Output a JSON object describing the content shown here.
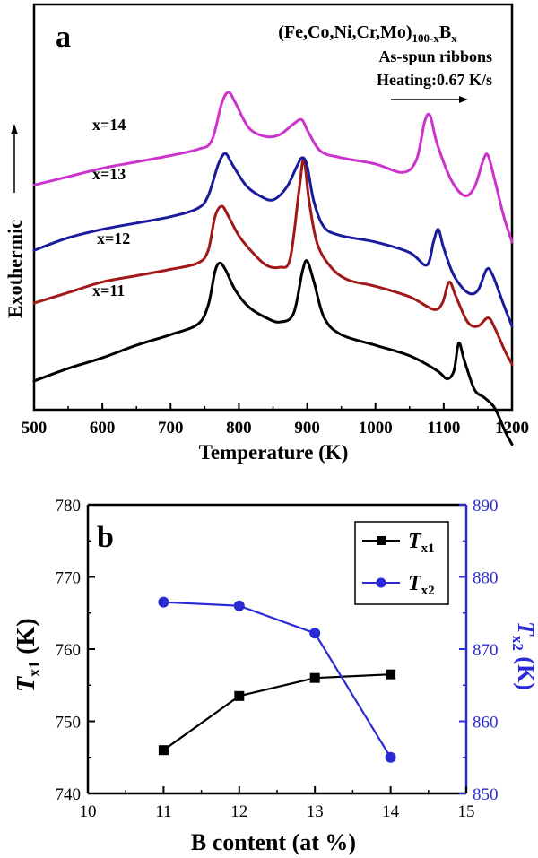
{
  "chart_data": [
    {
      "type": "line",
      "panel_label": "a",
      "xlabel": "Temperature (K)",
      "ylabel": "Exothermic",
      "xlim": [
        500,
        1200
      ],
      "xticks": [
        500,
        600,
        700,
        800,
        900,
        1000,
        1100,
        1200
      ],
      "y_axis_numeric": false,
      "annotation": {
        "composition_prefix": "(Fe,Co,Ni,Cr,Mo)",
        "composition_sub1": "100-x",
        "composition_mid": "B",
        "composition_sub2": "x",
        "line2": "As-spun ribbons",
        "line3": "Heating:0.67 K/s"
      },
      "series": [
        {
          "label": "x=11",
          "color": "#000000",
          "points": [
            [
              500,
              0.0
            ],
            [
              550,
              0.06
            ],
            [
              600,
              0.11
            ],
            [
              650,
              0.17
            ],
            [
              700,
              0.22
            ],
            [
              740,
              0.27
            ],
            [
              755,
              0.36
            ],
            [
              765,
              0.52
            ],
            [
              772,
              0.56
            ],
            [
              780,
              0.53
            ],
            [
              795,
              0.43
            ],
            [
              815,
              0.35
            ],
            [
              840,
              0.3
            ],
            [
              860,
              0.28
            ],
            [
              880,
              0.32
            ],
            [
              893,
              0.52
            ],
            [
              900,
              0.57
            ],
            [
              910,
              0.47
            ],
            [
              925,
              0.3
            ],
            [
              950,
              0.22
            ],
            [
              1000,
              0.17
            ],
            [
              1050,
              0.12
            ],
            [
              1090,
              0.05
            ],
            [
              1105,
              0.01
            ],
            [
              1115,
              0.05
            ],
            [
              1122,
              0.18
            ],
            [
              1130,
              0.1
            ],
            [
              1145,
              -0.04
            ],
            [
              1160,
              -0.08
            ],
            [
              1175,
              -0.13
            ],
            [
              1190,
              -0.24
            ],
            [
              1200,
              -0.3
            ]
          ]
        },
        {
          "label": "x=12",
          "color": "#a01818",
          "points": [
            [
              500,
              0.37
            ],
            [
              550,
              0.42
            ],
            [
              600,
              0.47
            ],
            [
              650,
              0.5
            ],
            [
              700,
              0.53
            ],
            [
              740,
              0.56
            ],
            [
              755,
              0.62
            ],
            [
              765,
              0.78
            ],
            [
              775,
              0.83
            ],
            [
              785,
              0.78
            ],
            [
              800,
              0.69
            ],
            [
              820,
              0.61
            ],
            [
              840,
              0.55
            ],
            [
              860,
              0.54
            ],
            [
              875,
              0.58
            ],
            [
              888,
              0.9
            ],
            [
              895,
              1.05
            ],
            [
              903,
              0.85
            ],
            [
              915,
              0.65
            ],
            [
              935,
              0.54
            ],
            [
              960,
              0.48
            ],
            [
              1000,
              0.45
            ],
            [
              1050,
              0.4
            ],
            [
              1085,
              0.34
            ],
            [
              1098,
              0.37
            ],
            [
              1108,
              0.47
            ],
            [
              1118,
              0.4
            ],
            [
              1135,
              0.28
            ],
            [
              1150,
              0.26
            ],
            [
              1165,
              0.3
            ],
            [
              1175,
              0.25
            ],
            [
              1190,
              0.14
            ],
            [
              1200,
              0.08
            ]
          ]
        },
        {
          "label": "x=13",
          "color": "#1a1a9c",
          "points": [
            [
              500,
              0.62
            ],
            [
              550,
              0.68
            ],
            [
              600,
              0.72
            ],
            [
              650,
              0.75
            ],
            [
              700,
              0.78
            ],
            [
              740,
              0.82
            ],
            [
              755,
              0.88
            ],
            [
              770,
              1.03
            ],
            [
              780,
              1.08
            ],
            [
              790,
              1.03
            ],
            [
              810,
              0.93
            ],
            [
              830,
              0.88
            ],
            [
              850,
              0.86
            ],
            [
              870,
              0.92
            ],
            [
              885,
              1.02
            ],
            [
              893,
              1.06
            ],
            [
              900,
              1.02
            ],
            [
              910,
              0.85
            ],
            [
              925,
              0.73
            ],
            [
              950,
              0.69
            ],
            [
              1000,
              0.66
            ],
            [
              1050,
              0.61
            ],
            [
              1075,
              0.55
            ],
            [
              1085,
              0.66
            ],
            [
              1092,
              0.72
            ],
            [
              1100,
              0.63
            ],
            [
              1115,
              0.5
            ],
            [
              1135,
              0.42
            ],
            [
              1150,
              0.43
            ],
            [
              1163,
              0.53
            ],
            [
              1172,
              0.5
            ],
            [
              1188,
              0.36
            ],
            [
              1200,
              0.26
            ]
          ]
        },
        {
          "label": "x=14",
          "color": "#cc33cc",
          "points": [
            [
              500,
              0.93
            ],
            [
              550,
              0.97
            ],
            [
              600,
              1.01
            ],
            [
              650,
              1.04
            ],
            [
              700,
              1.07
            ],
            [
              740,
              1.1
            ],
            [
              760,
              1.14
            ],
            [
              775,
              1.32
            ],
            [
              785,
              1.37
            ],
            [
              795,
              1.32
            ],
            [
              815,
              1.2
            ],
            [
              840,
              1.16
            ],
            [
              860,
              1.17
            ],
            [
              880,
              1.22
            ],
            [
              892,
              1.24
            ],
            [
              902,
              1.18
            ],
            [
              920,
              1.09
            ],
            [
              950,
              1.06
            ],
            [
              1000,
              1.03
            ],
            [
              1040,
              0.99
            ],
            [
              1060,
              1.05
            ],
            [
              1072,
              1.23
            ],
            [
              1080,
              1.26
            ],
            [
              1090,
              1.13
            ],
            [
              1110,
              0.96
            ],
            [
              1130,
              0.88
            ],
            [
              1145,
              0.92
            ],
            [
              1158,
              1.05
            ],
            [
              1165,
              1.07
            ],
            [
              1175,
              0.95
            ],
            [
              1188,
              0.78
            ],
            [
              1200,
              0.66
            ]
          ]
        }
      ]
    },
    {
      "type": "line",
      "panel_label": "b",
      "xlabel": "B content (at %)",
      "xlim": [
        10,
        15
      ],
      "xticks": [
        10,
        11,
        12,
        13,
        14,
        15
      ],
      "left_axis": {
        "label_main": "T",
        "label_sub": "x1",
        "label_unit": " (K)",
        "ylim": [
          740,
          780
        ],
        "ticks": [
          740,
          750,
          760,
          770,
          780
        ],
        "color": "#000000"
      },
      "right_axis": {
        "label_main": "T",
        "label_sub": "x2",
        "label_unit": " (K)",
        "ylim": [
          850,
          890
        ],
        "ticks": [
          850,
          860,
          870,
          880,
          890
        ],
        "color": "#2b2bd6"
      },
      "legend_position": "top-right",
      "series": [
        {
          "name_main": "T",
          "name_sub": "x1",
          "axis": "left",
          "marker": "square",
          "color": "#000000",
          "x": [
            11,
            12,
            13,
            14
          ],
          "y": [
            746.0,
            753.5,
            756.0,
            756.5
          ]
        },
        {
          "name_main": "T",
          "name_sub": "x2",
          "axis": "right",
          "marker": "circle",
          "color": "#2b2bd6",
          "x": [
            11,
            12,
            13,
            14
          ],
          "y": [
            876.5,
            876.0,
            872.2,
            855.0
          ]
        }
      ]
    }
  ]
}
